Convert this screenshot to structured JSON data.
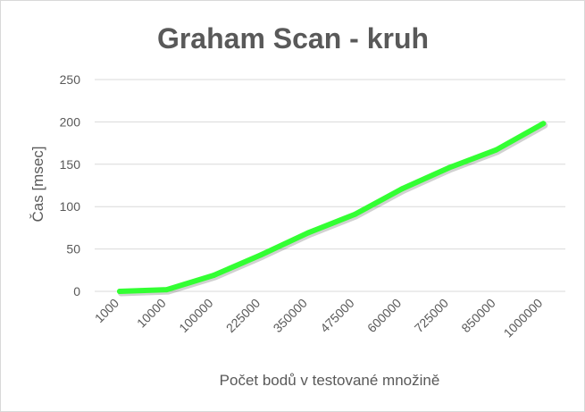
{
  "chart_data": {
    "type": "line",
    "title": "Graham Scan - kruh",
    "xlabel": "Počet bodů v testované množině",
    "ylabel": "Čas [msec]",
    "categories": [
      "1000",
      "10000",
      "100000",
      "225000",
      "350000",
      "475000",
      "600000",
      "725000",
      "850000",
      "1000000"
    ],
    "yticks": [
      "0",
      "50",
      "100",
      "150",
      "200",
      "250"
    ],
    "ylim": [
      0,
      250
    ],
    "grid": true,
    "legend": "none",
    "series": [
      {
        "values": [
          0,
          2,
          19,
          43,
          69,
          91,
          121,
          146,
          167,
          198
        ],
        "color": "#33ff33"
      }
    ]
  }
}
